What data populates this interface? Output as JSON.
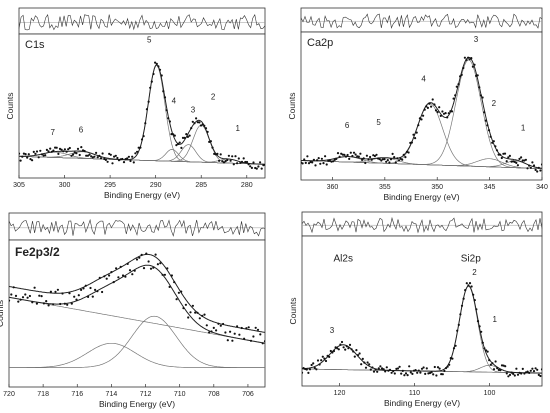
{
  "chart_data": [
    {
      "type": "line",
      "panel_label": "C1s",
      "xlabel": "Binding Energy (eV)",
      "ylabel": "Counts",
      "xlim": [
        305,
        278
      ],
      "xticks": [
        305,
        300,
        295,
        290,
        285,
        280
      ],
      "ylim": [
        0,
        1
      ],
      "peak_labels": [
        {
          "text": "1",
          "x": 281.0,
          "y": 0.31
        },
        {
          "text": "2",
          "x": 283.7,
          "y": 0.55
        },
        {
          "text": "3",
          "x": 285.9,
          "y": 0.45
        },
        {
          "text": "4",
          "x": 288.0,
          "y": 0.52
        },
        {
          "text": "5",
          "x": 290.7,
          "y": 0.98
        },
        {
          "text": "6",
          "x": 298.2,
          "y": 0.3
        },
        {
          "text": "7",
          "x": 301.3,
          "y": 0.28
        }
      ],
      "components": [
        {
          "center": 282.0,
          "amp": 0.03,
          "sigma": 1.0
        },
        {
          "center": 285.0,
          "amp": 0.28,
          "sigma": 0.9
        },
        {
          "center": 286.4,
          "amp": 0.13,
          "sigma": 0.8
        },
        {
          "center": 288.2,
          "amp": 0.09,
          "sigma": 0.7
        },
        {
          "center": 289.9,
          "amp": 0.72,
          "sigma": 0.9
        },
        {
          "center": 298.0,
          "amp": 0.05,
          "sigma": 1.4
        },
        {
          "center": 301.0,
          "amp": 0.04,
          "sigma": 1.4
        }
      ],
      "background": {
        "start": 0.12,
        "end": 0.06
      }
    },
    {
      "type": "line",
      "panel_label": "Ca2p",
      "xlabel": "Binding Energy (eV)",
      "ylabel": "Counts",
      "xlim": [
        363,
        340
      ],
      "xticks": [
        360,
        355,
        350,
        345,
        340
      ],
      "ylim": [
        0,
        1
      ],
      "peak_labels": [
        {
          "text": "1",
          "x": 341.8,
          "y": 0.32
        },
        {
          "text": "2",
          "x": 344.6,
          "y": 0.5
        },
        {
          "text": "3",
          "x": 346.3,
          "y": 0.97
        },
        {
          "text": "4",
          "x": 351.3,
          "y": 0.68
        },
        {
          "text": "5",
          "x": 355.6,
          "y": 0.36
        },
        {
          "text": "6",
          "x": 358.6,
          "y": 0.34
        }
      ],
      "components": [
        {
          "center": 342.5,
          "amp": 0.05,
          "sigma": 1.0
        },
        {
          "center": 345.0,
          "amp": 0.06,
          "sigma": 1.2
        },
        {
          "center": 347.0,
          "amp": 0.78,
          "sigma": 1.2
        },
        {
          "center": 350.7,
          "amp": 0.45,
          "sigma": 1.2
        },
        {
          "center": 355.0,
          "amp": 0.04,
          "sigma": 1.2
        },
        {
          "center": 358.5,
          "amp": 0.04,
          "sigma": 1.2
        }
      ],
      "background": {
        "start": 0.1,
        "end": 0.04
      }
    },
    {
      "type": "line",
      "panel_label": "Fe2p3/2",
      "xlabel": "Binding Energy (eV)",
      "ylabel": "Counts",
      "xlim": [
        720,
        705
      ],
      "xticks": [
        720,
        718,
        716,
        714,
        712,
        710,
        708,
        706
      ],
      "ylim": [
        0,
        1
      ],
      "peak_labels": [],
      "components": [
        {
          "center": 711.5,
          "amp": 0.38,
          "sigma": 1.3
        },
        {
          "center": 714.0,
          "amp": 0.18,
          "sigma": 1.4
        }
      ],
      "background": {
        "start": 0.62,
        "end": 0.28
      }
    },
    {
      "type": "line",
      "panel_label": "",
      "region_labels": [
        {
          "text": "Al2s",
          "x": 119.5,
          "y": 0.86
        },
        {
          "text": "Si2p",
          "x": 102.5,
          "y": 0.86
        }
      ],
      "xlabel": "Binding Energy (eV)",
      "ylabel": "Counts",
      "xlim": [
        125,
        93
      ],
      "xticks": [
        120,
        110,
        100
      ],
      "ylim": [
        0,
        1
      ],
      "peak_labels": [
        {
          "text": "1",
          "x": 99.3,
          "y": 0.42
        },
        {
          "text": "2",
          "x": 102.0,
          "y": 0.76
        },
        {
          "text": "3",
          "x": 121.0,
          "y": 0.34
        }
      ],
      "components": [
        {
          "center": 100.0,
          "amp": 0.05,
          "sigma": 1.2
        },
        {
          "center": 102.8,
          "amp": 0.62,
          "sigma": 1.2
        },
        {
          "center": 119.5,
          "amp": 0.18,
          "sigma": 1.8
        }
      ],
      "background": {
        "start": 0.08,
        "end": 0.05
      }
    }
  ]
}
